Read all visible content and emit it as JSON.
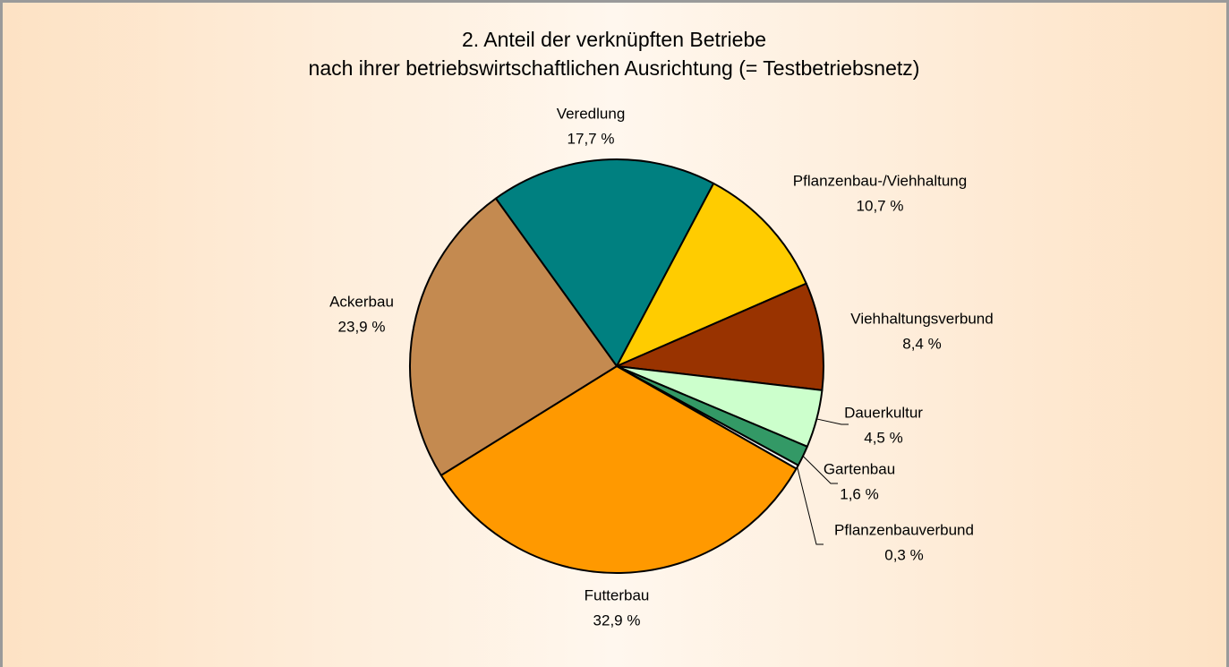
{
  "chart_data": {
    "type": "pie",
    "title": [
      "2. Anteil der verknüpften Betriebe",
      "nach ihrer betriebswirtschaftlichen Ausrichtung (= Testbetriebsnetz)"
    ],
    "categories": [
      "Veredlung",
      "Pflanzenbau-/Viehhaltung",
      "Viehhaltungsverbund",
      "Dauerkultur",
      "Gartenbau",
      "Pflanzenbauverbund",
      "Futterbau",
      "Ackerbau"
    ],
    "values": [
      17.7,
      10.7,
      8.4,
      4.5,
      1.6,
      0.3,
      32.9,
      23.9
    ],
    "value_labels": [
      "17,7 %",
      "10,7 %",
      "8,4 %",
      "4,5 %",
      "1,6 %",
      "0,3 %",
      "32,9 %",
      "23,9 %"
    ],
    "colors": [
      "#008080",
      "#ffcc00",
      "#993300",
      "#ccffcc",
      "#339966",
      "#f4f4f4",
      "#ff9900",
      "#c48a50"
    ]
  }
}
